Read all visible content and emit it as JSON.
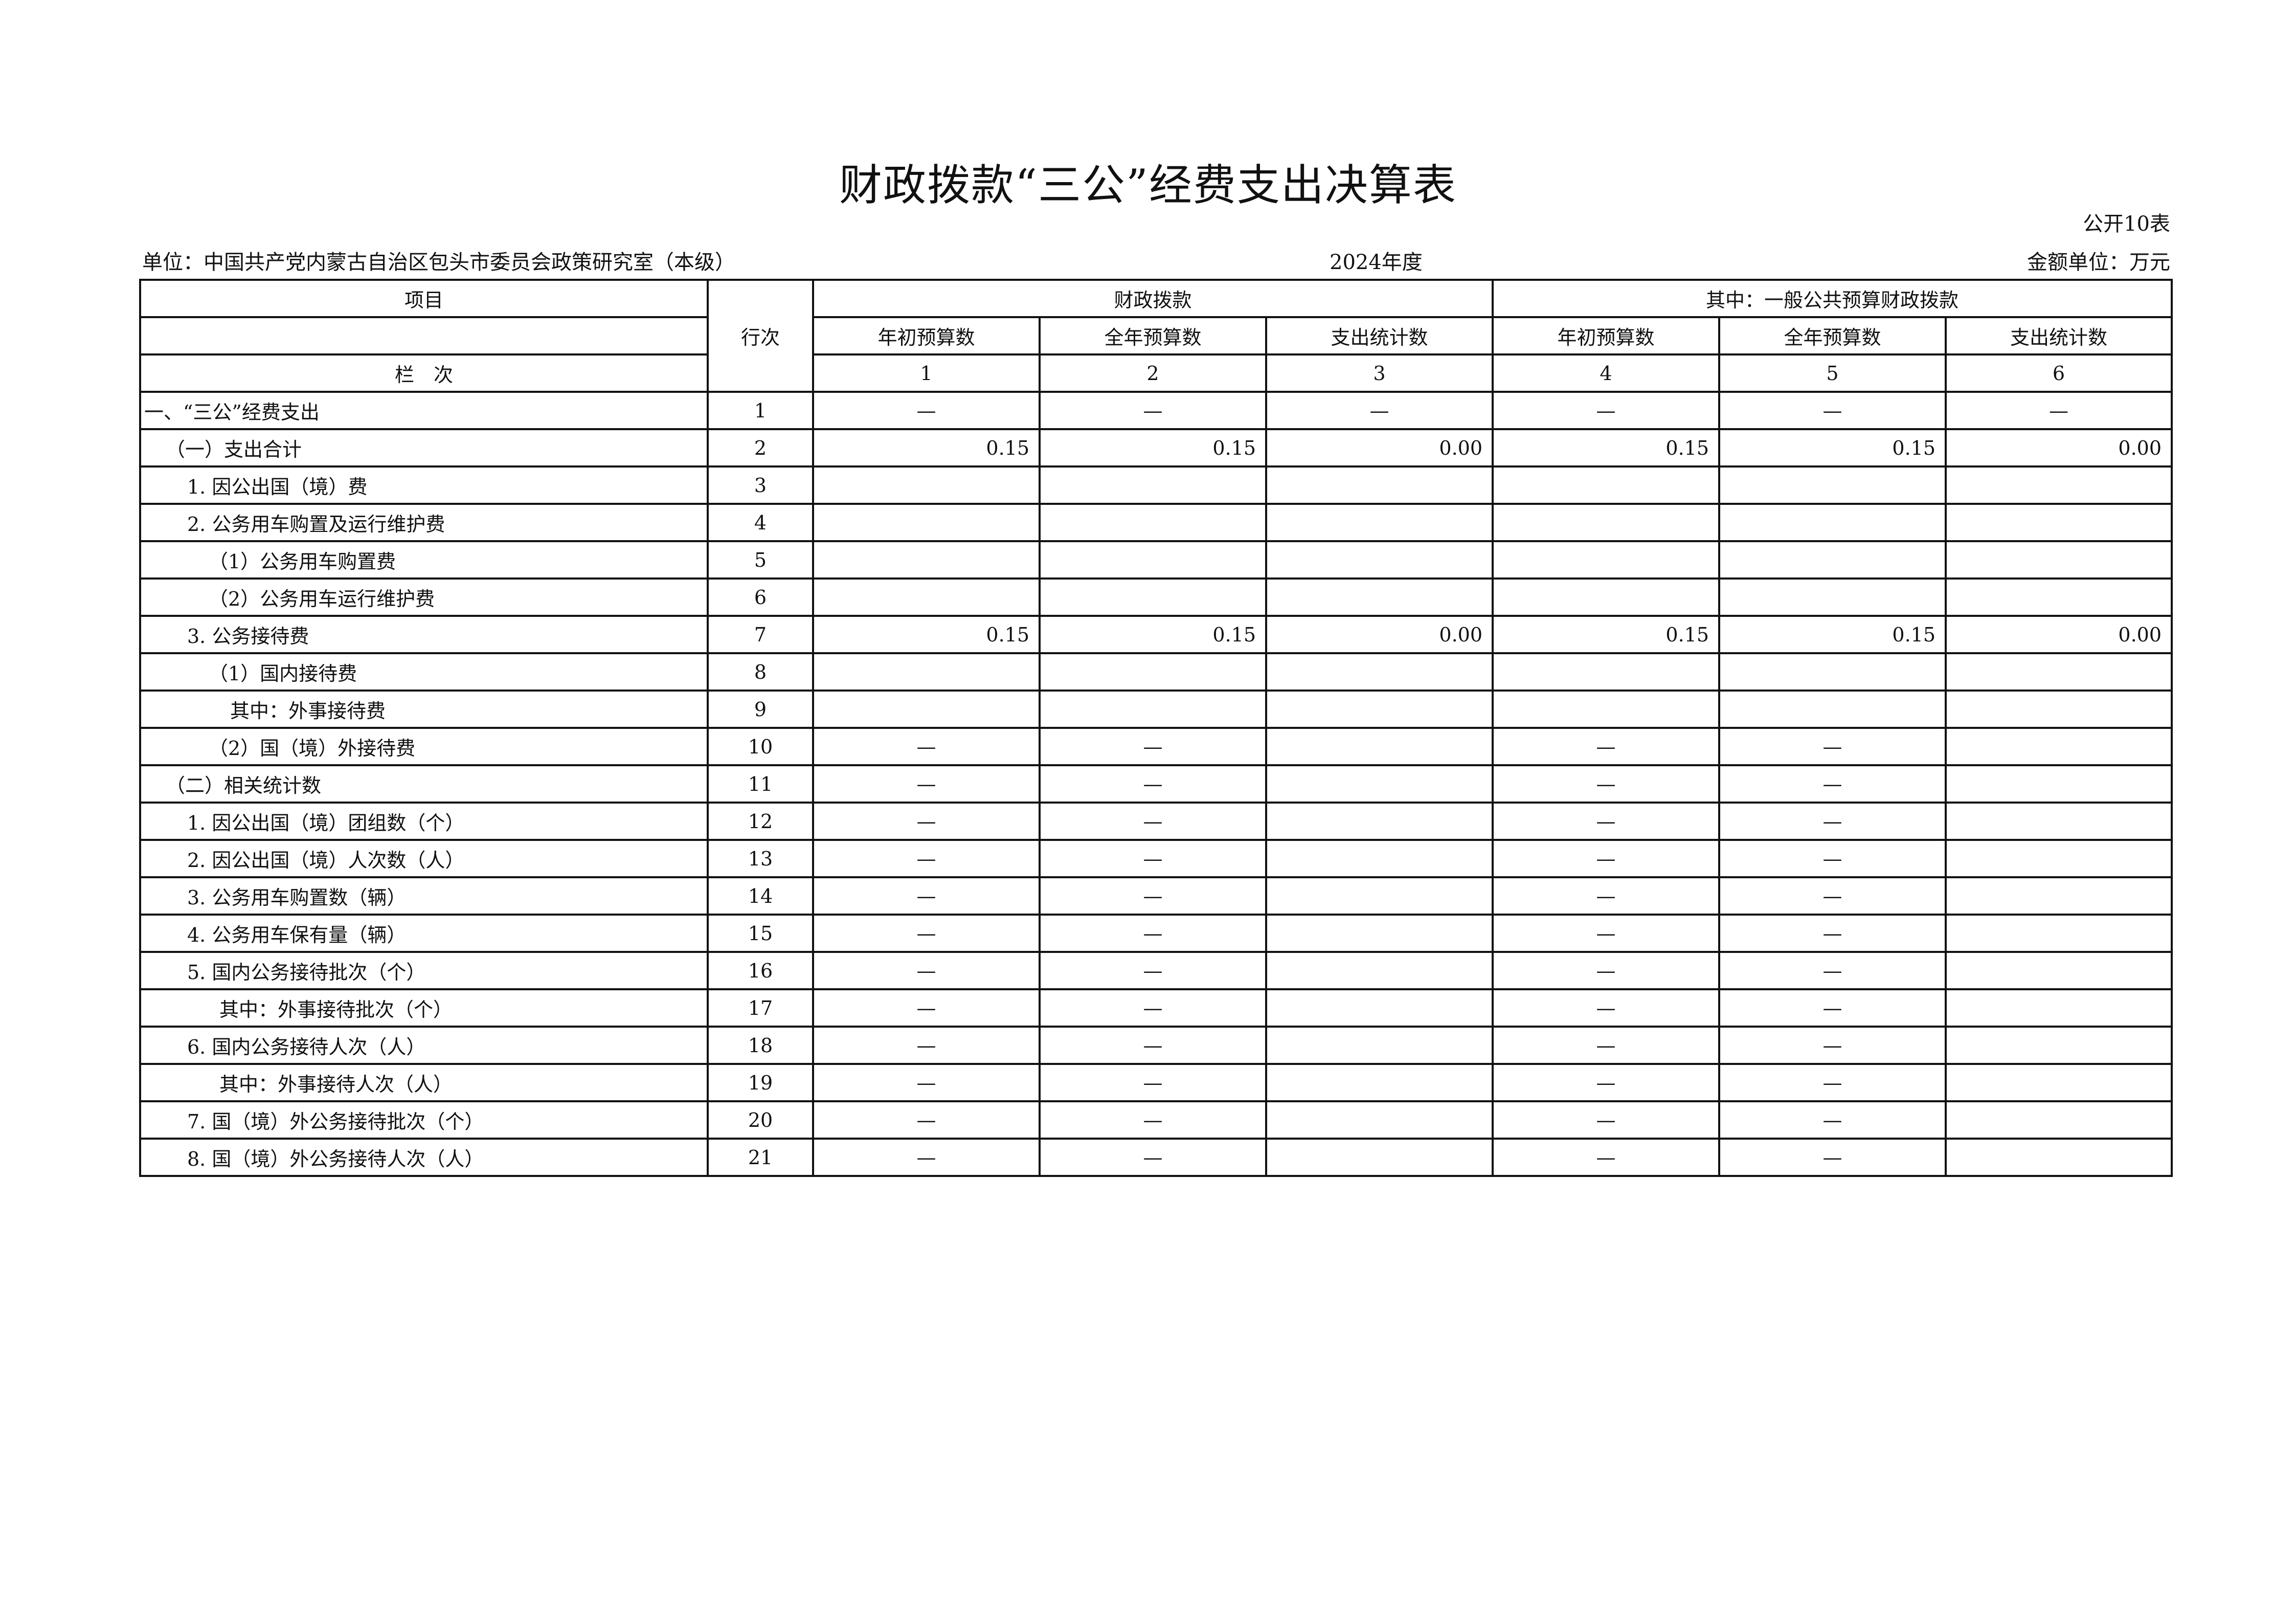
{
  "title": "财政拨款“三公”经费支出决算表",
  "form_no": "公开10表",
  "unit": "单位：中国共产党内蒙古自治区包头市委员会政策研究室（本级）",
  "year": "2024年度",
  "money_unit": "金额单位：万元",
  "header": {
    "item": "项目",
    "row_no": "行次",
    "col_no": "栏　次",
    "group1": "财政拨款",
    "group2": "其中：一般公共预算财政拨款",
    "cols": [
      "年初预算数",
      "全年预算数",
      "支出统计数",
      "年初预算数",
      "全年预算数",
      "支出统计数"
    ],
    "col_numbers": [
      "1",
      "2",
      "3",
      "4",
      "5",
      "6"
    ]
  },
  "rows": [
    {
      "item": "一、“三公”经费支出",
      "indent": 0,
      "no": "1",
      "v": [
        "—",
        "—",
        "—",
        "—",
        "—",
        "—"
      ]
    },
    {
      "item": "（一）支出合计",
      "indent": 1,
      "no": "2",
      "v": [
        "0.15",
        "0.15",
        "0.00",
        "0.15",
        "0.15",
        "0.00"
      ]
    },
    {
      "item": "1. 因公出国（境）费",
      "indent": 2,
      "no": "3",
      "v": [
        "",
        "",
        "",
        "",
        "",
        ""
      ]
    },
    {
      "item": "2. 公务用车购置及运行维护费",
      "indent": 2,
      "no": "4",
      "v": [
        "",
        "",
        "",
        "",
        "",
        ""
      ]
    },
    {
      "item": "（1）公务用车购置费",
      "indent": 3,
      "no": "5",
      "v": [
        "",
        "",
        "",
        "",
        "",
        ""
      ]
    },
    {
      "item": "（2）公务用车运行维护费",
      "indent": 3,
      "no": "6",
      "v": [
        "",
        "",
        "",
        "",
        "",
        ""
      ]
    },
    {
      "item": "3. 公务接待费",
      "indent": 2,
      "no": "7",
      "v": [
        "0.15",
        "0.15",
        "0.00",
        "0.15",
        "0.15",
        "0.00"
      ]
    },
    {
      "item": "（1）国内接待费",
      "indent": 3,
      "no": "8",
      "v": [
        "",
        "",
        "",
        "",
        "",
        ""
      ]
    },
    {
      "item": "其中：外事接待费",
      "indent": 4,
      "no": "9",
      "v": [
        "",
        "",
        "",
        "",
        "",
        ""
      ]
    },
    {
      "item": "（2）国（境）外接待费",
      "indent": 3,
      "no": "10",
      "v": [
        "—",
        "—",
        "",
        "—",
        "—",
        ""
      ]
    },
    {
      "item": "（二）相关统计数",
      "indent": 1,
      "no": "11",
      "v": [
        "—",
        "—",
        "",
        "—",
        "—",
        ""
      ]
    },
    {
      "item": "1. 因公出国（境）团组数（个）",
      "indent": 2,
      "no": "12",
      "v": [
        "—",
        "—",
        "",
        "—",
        "—",
        ""
      ]
    },
    {
      "item": "2. 因公出国（境）人次数（人）",
      "indent": 2,
      "no": "13",
      "v": [
        "—",
        "—",
        "",
        "—",
        "—",
        ""
      ]
    },
    {
      "item": "3. 公务用车购置数（辆）",
      "indent": 2,
      "no": "14",
      "v": [
        "—",
        "—",
        "",
        "—",
        "—",
        ""
      ]
    },
    {
      "item": "4. 公务用车保有量（辆）",
      "indent": 2,
      "no": "15",
      "v": [
        "—",
        "—",
        "",
        "—",
        "—",
        ""
      ]
    },
    {
      "item": "5. 国内公务接待批次（个）",
      "indent": 2,
      "no": "16",
      "v": [
        "—",
        "—",
        "",
        "—",
        "—",
        ""
      ]
    },
    {
      "item": "其中：外事接待批次（个）",
      "indent": 3.5,
      "no": "17",
      "v": [
        "—",
        "—",
        "",
        "—",
        "—",
        ""
      ]
    },
    {
      "item": "6. 国内公务接待人次（人）",
      "indent": 2,
      "no": "18",
      "v": [
        "—",
        "—",
        "",
        "—",
        "—",
        ""
      ]
    },
    {
      "item": "其中：外事接待人次（人）",
      "indent": 3.5,
      "no": "19",
      "v": [
        "—",
        "—",
        "",
        "—",
        "—",
        ""
      ]
    },
    {
      "item": "7. 国（境）外公务接待批次（个）",
      "indent": 2,
      "no": "20",
      "v": [
        "—",
        "—",
        "",
        "—",
        "—",
        ""
      ]
    },
    {
      "item": "8. 国（境）外公务接待人次（人）",
      "indent": 2,
      "no": "21",
      "v": [
        "—",
        "—",
        "",
        "—",
        "—",
        ""
      ]
    }
  ]
}
